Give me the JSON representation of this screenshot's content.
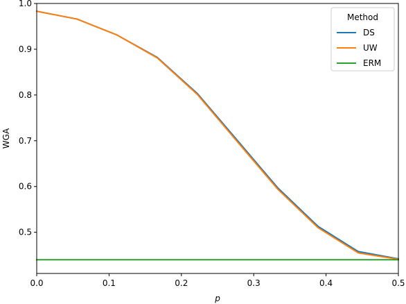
{
  "chart_data": {
    "type": "line",
    "title": "",
    "xlabel": "p",
    "ylabel": "WGA",
    "xlim": [
      0.0,
      0.5
    ],
    "ylim": [
      0.41,
      1.0
    ],
    "xticks": [
      "0.0",
      "0.1",
      "0.2",
      "0.3",
      "0.4",
      "0.5"
    ],
    "yticks": [
      "0.5",
      "0.6",
      "0.7",
      "0.8",
      "0.9",
      "1.0"
    ],
    "grid": false,
    "legend": {
      "title": "Method",
      "placement": "top-right"
    },
    "x": [
      0.0,
      0.0556,
      0.1111,
      0.1667,
      0.2222,
      0.2778,
      0.3333,
      0.3889,
      0.4444,
      0.5
    ],
    "series": [
      {
        "name": "DS",
        "color": "#1f77b4",
        "values": [
          0.983,
          0.966,
          0.931,
          0.882,
          0.803,
          0.7,
          0.597,
          0.513,
          0.458,
          0.442
        ]
      },
      {
        "name": "UW",
        "color": "#ff7f0e",
        "values": [
          0.983,
          0.966,
          0.931,
          0.881,
          0.801,
          0.697,
          0.594,
          0.51,
          0.455,
          0.441
        ]
      },
      {
        "name": "ERM",
        "color": "#2ca02c",
        "values": [
          0.44,
          0.44,
          0.44,
          0.44,
          0.44,
          0.44,
          0.44,
          0.44,
          0.44,
          0.44
        ]
      }
    ]
  }
}
